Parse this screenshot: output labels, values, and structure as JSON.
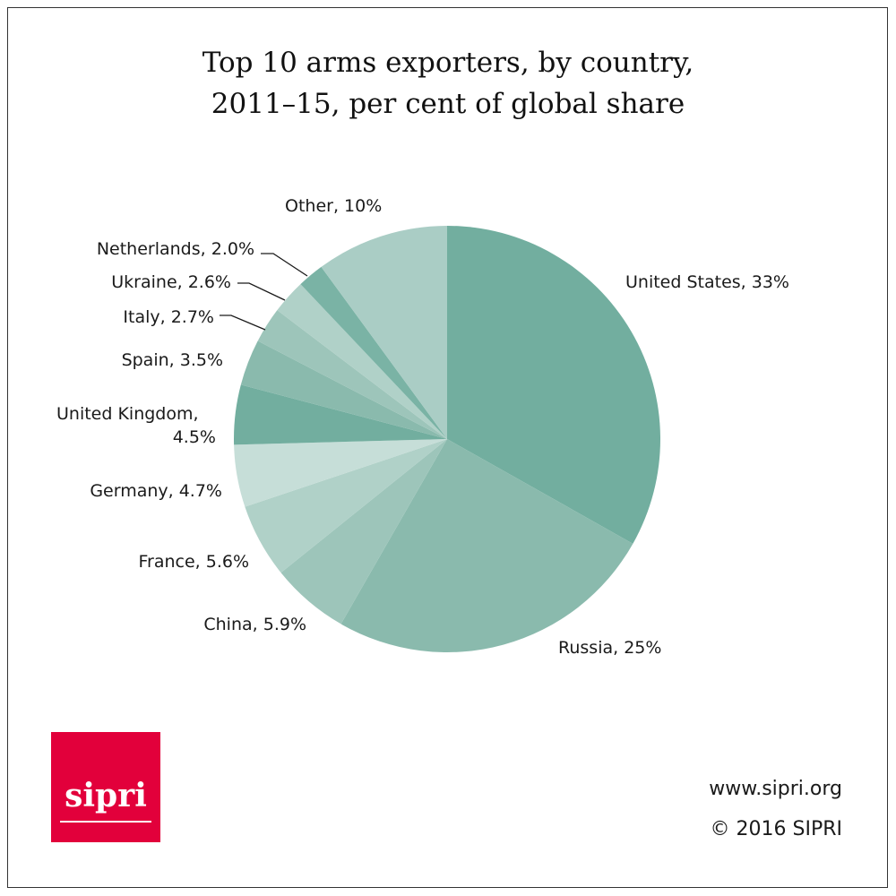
{
  "chart_data": {
    "type": "pie",
    "title_lines": [
      "Top 10 arms exporters, by country,",
      "2011–15, per cent of global share"
    ],
    "start": "top",
    "direction": "clockwise",
    "slices": [
      {
        "label": "United States, 33%",
        "value": 33,
        "color": "#72ae9f"
      },
      {
        "label": "Russia, 25%",
        "value": 25,
        "color": "#8abaad"
      },
      {
        "label": "China, 5.9%",
        "value": 5.9,
        "color": "#9dc5ba"
      },
      {
        "label": "France, 5.6%",
        "value": 5.6,
        "color": "#b0d1c8"
      },
      {
        "label": "Germany, 4.7%",
        "value": 4.7,
        "color": "#c6ded8"
      },
      {
        "label": "United Kingdom,",
        "label2": "4.5%",
        "value": 4.5,
        "color": "#72ae9f"
      },
      {
        "label": "Spain, 3.5%",
        "value": 3.5,
        "color": "#8abaad"
      },
      {
        "label": "Italy, 2.7%",
        "value": 2.7,
        "color": "#9dc5ba"
      },
      {
        "label": "Ukraine, 2.6%",
        "value": 2.6,
        "color": "#b0d1c8"
      },
      {
        "label": "Netherlands, 2.0%",
        "value": 2.0,
        "color": "#7ab3a5"
      },
      {
        "label": "Other, 10%",
        "value": 10,
        "color": "#aacdc5"
      }
    ]
  },
  "footer": {
    "url": "www.sipri.org",
    "copyright": "© 2016 SIPRI"
  },
  "logo": {
    "text": "sipri",
    "color": "#e2003b"
  }
}
